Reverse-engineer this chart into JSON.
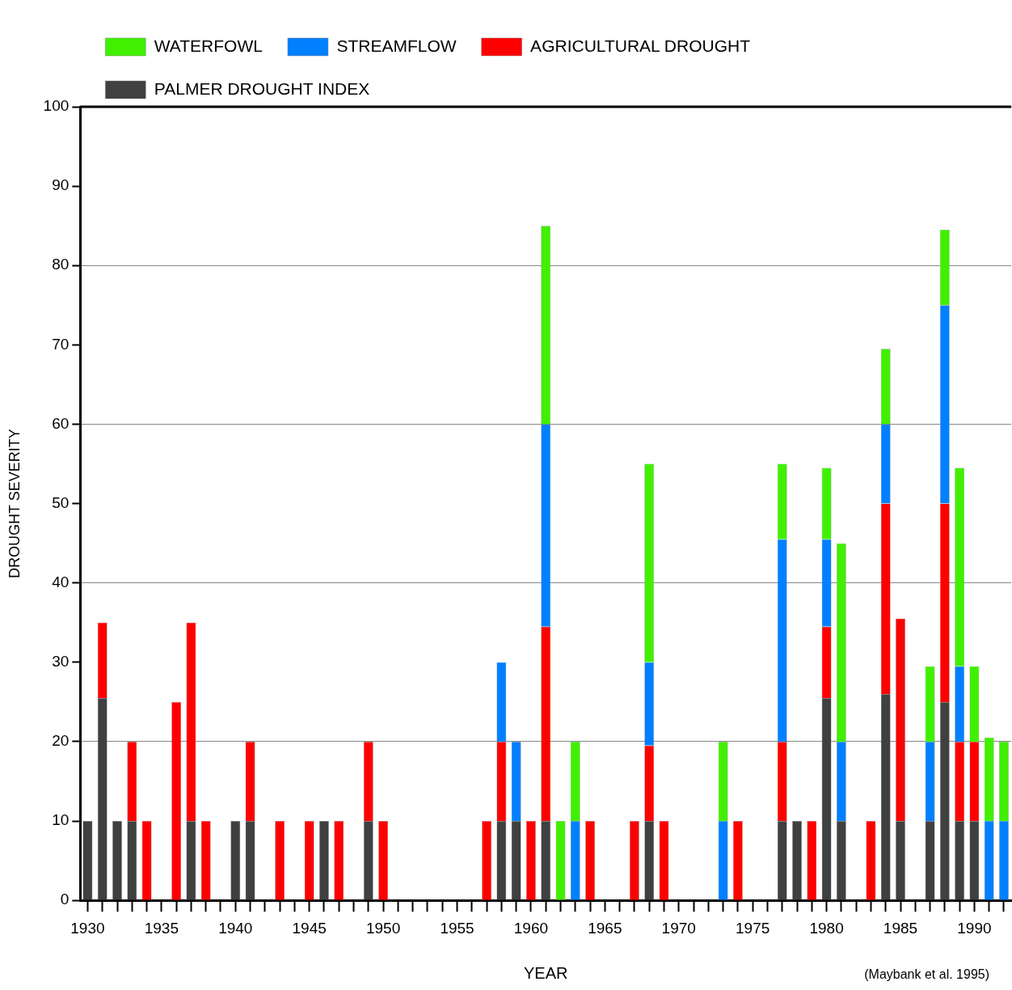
{
  "chart_data": {
    "type": "bar",
    "stacked": true,
    "categories": [
      "1930",
      null,
      null,
      null,
      null,
      "1935",
      null,
      null,
      null,
      null,
      "1940",
      null,
      null,
      null,
      null,
      "1945",
      null,
      null,
      null,
      null,
      "1950",
      null,
      null,
      null,
      null,
      "1955",
      null,
      null,
      null,
      null,
      "1960",
      null,
      null,
      null,
      null,
      "1965",
      null,
      null,
      null,
      null,
      "1970",
      null,
      null,
      null,
      null,
      "1975",
      null,
      null,
      null,
      null,
      "1980",
      null,
      null,
      null,
      null,
      "1985",
      null,
      null,
      null,
      null,
      "1990",
      null,
      null
    ],
    "series": [
      {
        "name": "PALMER DROUGHT INDEX",
        "color": "#404040",
        "values": [
          10,
          25.5,
          10,
          10,
          null,
          null,
          null,
          10,
          null,
          null,
          10,
          10,
          null,
          null,
          null,
          null,
          10,
          null,
          null,
          10,
          null,
          null,
          null,
          null,
          null,
          null,
          null,
          null,
          10,
          10,
          null,
          10,
          null,
          null,
          null,
          null,
          null,
          null,
          10,
          null,
          null,
          null,
          null,
          null,
          null,
          null,
          null,
          10,
          10,
          null,
          25.5,
          10,
          null,
          null,
          26,
          10,
          null,
          10,
          25,
          10,
          10,
          null,
          null
        ]
      },
      {
        "name": "AGRICULTURAL DROUGHT",
        "color": "#ff0000",
        "values": [
          null,
          9.5,
          null,
          10,
          10,
          null,
          25,
          25,
          10,
          null,
          null,
          10,
          null,
          10,
          null,
          10,
          null,
          10,
          null,
          10,
          10,
          null,
          null,
          null,
          null,
          null,
          null,
          10,
          10,
          null,
          10,
          24.5,
          null,
          null,
          10,
          null,
          null,
          10,
          9.5,
          10,
          null,
          null,
          null,
          null,
          10,
          null,
          null,
          10,
          null,
          10,
          9,
          null,
          null,
          10,
          24,
          25.5,
          null,
          null,
          25,
          10,
          10,
          null,
          null
        ]
      },
      {
        "name": "STREAMFLOW",
        "color": "#0080ff",
        "values": [
          null,
          null,
          null,
          null,
          null,
          null,
          null,
          null,
          null,
          null,
          null,
          null,
          null,
          null,
          null,
          null,
          null,
          null,
          null,
          null,
          null,
          null,
          null,
          null,
          null,
          null,
          null,
          null,
          10,
          10,
          null,
          25.5,
          null,
          10,
          null,
          null,
          null,
          null,
          10.5,
          null,
          null,
          null,
          null,
          10,
          null,
          null,
          null,
          25.5,
          null,
          null,
          11,
          10,
          null,
          null,
          10,
          null,
          null,
          10,
          25,
          9.5,
          null,
          10,
          10
        ]
      },
      {
        "name": "WATERFOWL",
        "color": "#40f000",
        "values": [
          null,
          null,
          null,
          null,
          null,
          null,
          null,
          null,
          null,
          null,
          null,
          null,
          null,
          null,
          null,
          null,
          null,
          null,
          null,
          null,
          null,
          null,
          null,
          null,
          null,
          null,
          null,
          null,
          null,
          null,
          null,
          25,
          10,
          10,
          null,
          null,
          null,
          null,
          25,
          null,
          null,
          null,
          null,
          10,
          null,
          null,
          null,
          9.5,
          null,
          null,
          9,
          25,
          null,
          null,
          9.5,
          null,
          null,
          9.5,
          9.5,
          25,
          9.5,
          10.5,
          10
        ]
      }
    ],
    "ylim": [
      0,
      100
    ],
    "yticks": [
      0,
      10,
      20,
      30,
      40,
      50,
      60,
      70,
      80,
      90,
      100
    ],
    "xlabel": "YEAR",
    "ylabel": "DROUGHT SEVERITY",
    "grid": "y",
    "legend": "top left",
    "annotations": [
      "(Maybank et al. 1995)"
    ]
  }
}
